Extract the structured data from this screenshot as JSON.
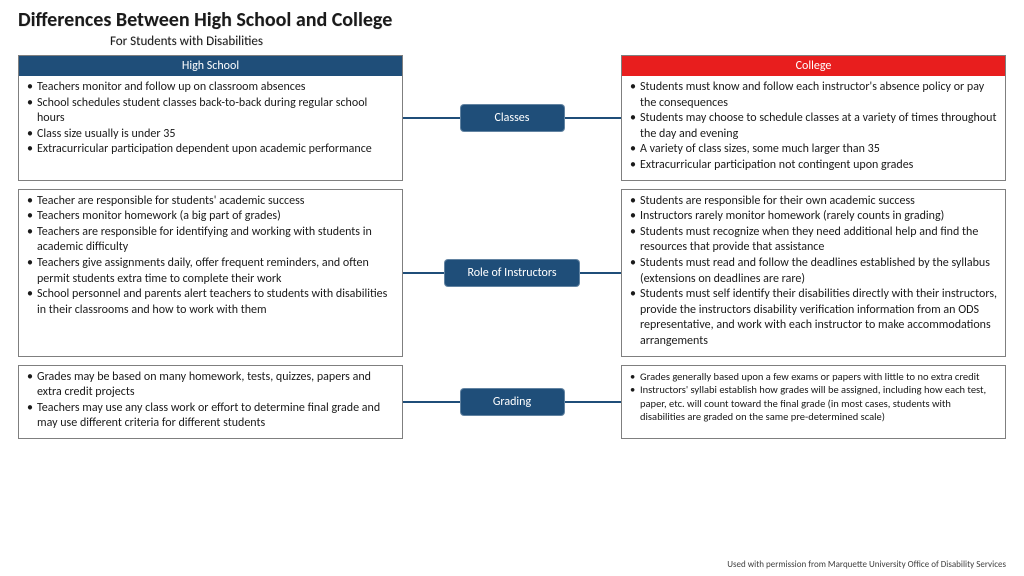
{
  "title": "Differences Between High School and College",
  "subtitle": "For Students with Disabilities",
  "colors": {
    "hs_header_bg": "#1f4e79",
    "college_header_bg": "#e81e1e",
    "badge_bg": "#1f4e79",
    "connector": "#1f4e79",
    "border": "#7f7f7f"
  },
  "headers": {
    "left": "High School",
    "right": "College"
  },
  "rows": [
    {
      "badge": "Classes",
      "left": [
        "Teachers monitor and follow up on classroom absences",
        "School schedules student classes back-to-back during regular school hours",
        "Class size usually is under 35",
        "Extracurricular participation dependent upon academic performance"
      ],
      "right": [
        "Students must know and follow each instructor's absence policy or pay the consequences",
        "Students may choose to schedule classes at a variety of times throughout the day and evening",
        "A variety of class sizes, some much larger than 35",
        "Extracurricular participation not contingent upon grades"
      ],
      "right_font": 12
    },
    {
      "badge": "Role of Instructors",
      "left": [
        "Teacher are responsible for students' academic success",
        "Teachers monitor homework (a big part of grades)",
        "Teachers are responsible for identifying and working with students in academic difficulty",
        "Teachers give assignments daily, offer frequent reminders, and often permit students extra time to complete their work",
        "School personnel and parents alert teachers to students with disabilities in their classrooms and how to work with them"
      ],
      "right": [
        "Students are responsible for their own academic success",
        "Instructors rarely monitor homework (rarely counts in grading)",
        "Students must recognize when they need additional help and find the resources that provide that assistance",
        "Students must read and follow the deadlines established by the syllabus (extensions on deadlines are rare)",
        "Students must self identify their disabilities directly with their instructors, provide the instructors disability verification information from an ODS representative, and work with each instructor to make accommodations arrangements"
      ],
      "right_font": 12
    },
    {
      "badge": "Grading",
      "left": [
        "Grades may be based on many homework, tests, quizzes, papers and extra credit projects",
        "Teachers may use any class work or effort to determine final grade and may use different criteria for different students"
      ],
      "right": [
        "Grades generally based upon a few exams or papers with little to no extra credit",
        "Instructors' syllabi establish how grades will be assigned, including how each test, paper, etc. will count toward the final grade (in most cases, students with disabilities are graded on the same pre-determined scale)"
      ],
      "right_font": 10.5
    }
  ],
  "attribution": "Used with permission from Marquette University Office of Disability Services"
}
